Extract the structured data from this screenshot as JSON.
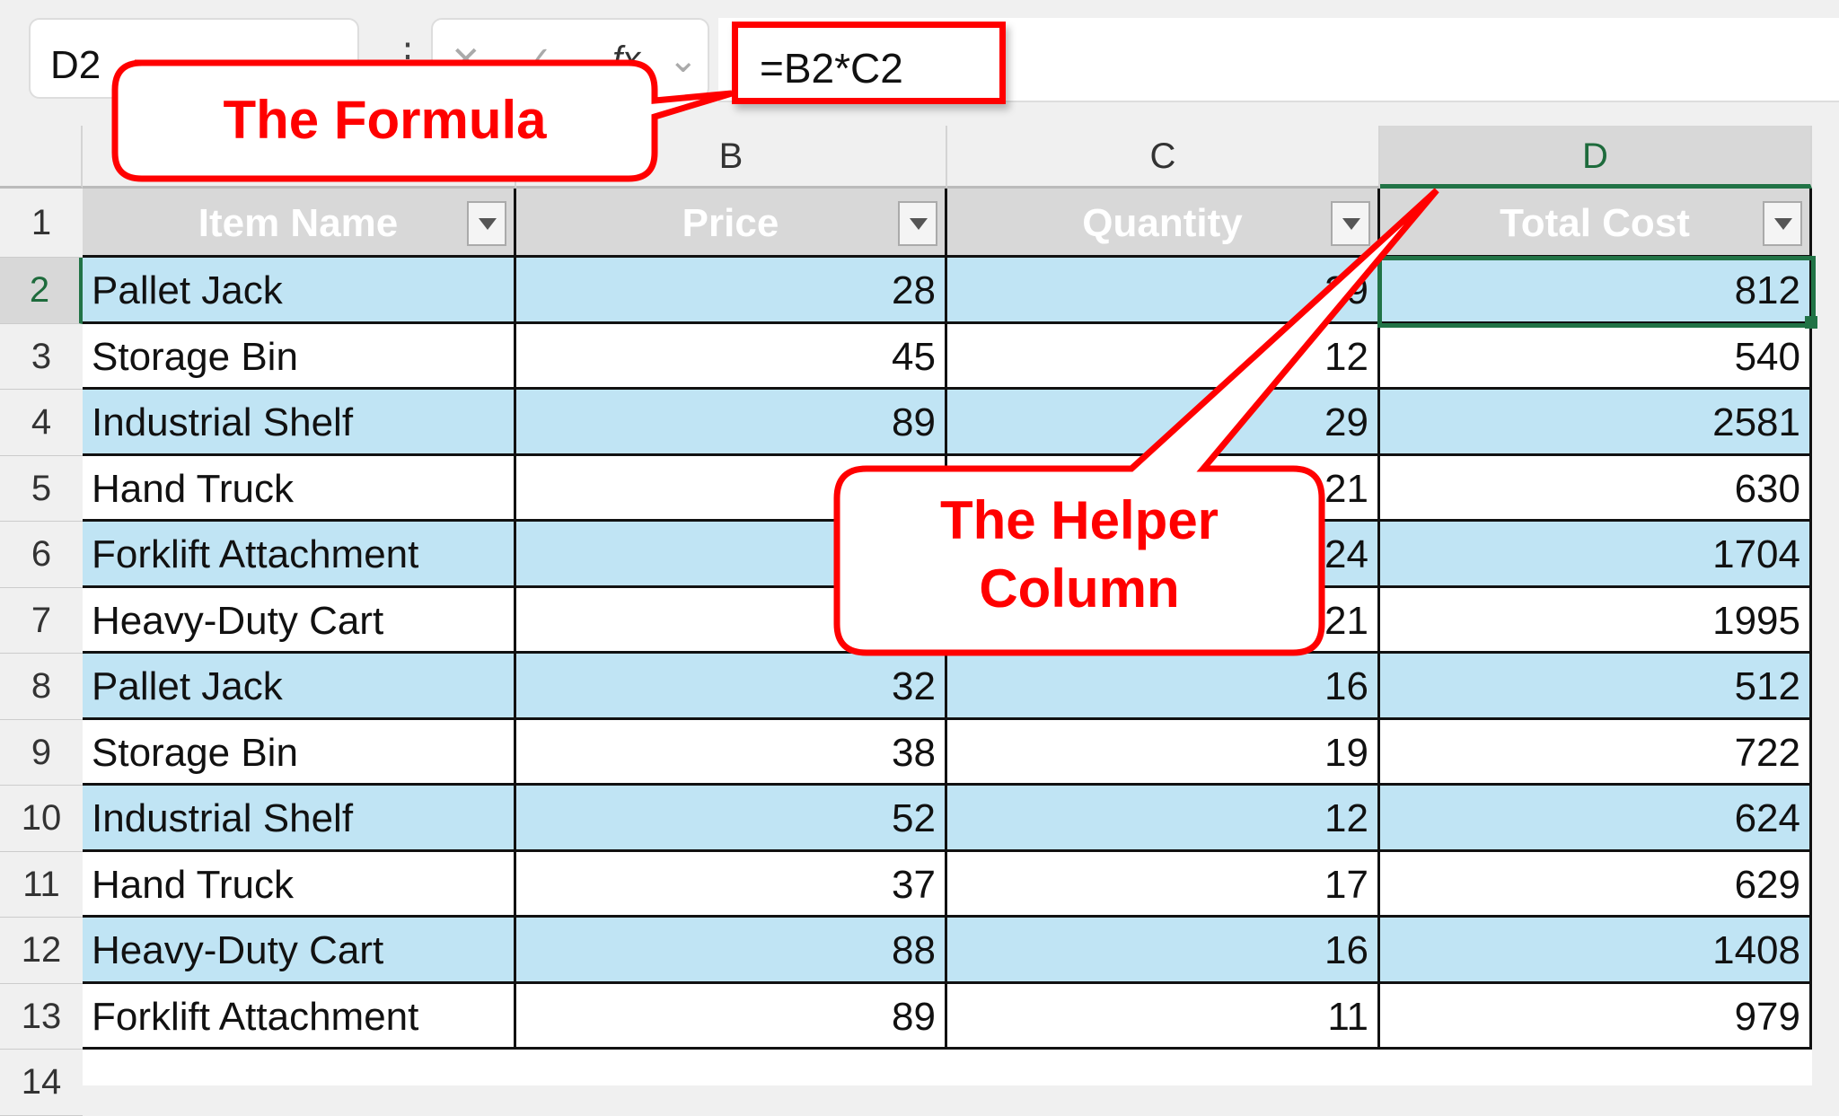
{
  "name_box": "D2",
  "formula_bar": {
    "cancel_icon": "✕",
    "enter_icon": "✓",
    "fx_label": "fx",
    "value": "=B2*C2"
  },
  "columns": [
    "B",
    "C",
    "D"
  ],
  "row_numbers": [
    "1",
    "2",
    "3",
    "4",
    "5",
    "6",
    "7",
    "8",
    "9",
    "10",
    "11",
    "12",
    "13",
    "14"
  ],
  "table": {
    "headers": [
      "Item Name",
      "Price",
      "Quantity",
      "Total Cost"
    ],
    "rows": [
      [
        "Pallet Jack",
        "28",
        "29",
        "812"
      ],
      [
        "Storage Bin",
        "45",
        "12",
        "540"
      ],
      [
        "Industrial Shelf",
        "89",
        "29",
        "2581"
      ],
      [
        "Hand Truck",
        "",
        "21",
        "630"
      ],
      [
        "Forklift Attachment",
        "",
        "24",
        "1704"
      ],
      [
        "Heavy-Duty Cart",
        "",
        "21",
        "1995"
      ],
      [
        "Pallet Jack",
        "32",
        "16",
        "512"
      ],
      [
        "Storage Bin",
        "38",
        "19",
        "722"
      ],
      [
        "Industrial Shelf",
        "52",
        "12",
        "624"
      ],
      [
        "Hand Truck",
        "37",
        "17",
        "629"
      ],
      [
        "Heavy-Duty Cart",
        "88",
        "16",
        "1408"
      ],
      [
        "Forklift Attachment",
        "89",
        "11",
        "979"
      ]
    ]
  },
  "callouts": {
    "formula": "The Formula",
    "helper_line1": "The Helper",
    "helper_line2": "Column"
  },
  "colors": {
    "accent_green": "#217346",
    "band_blue": "#c0e4f4",
    "callout_red": "#ff0000",
    "header_gray": "#d8d8d8"
  }
}
